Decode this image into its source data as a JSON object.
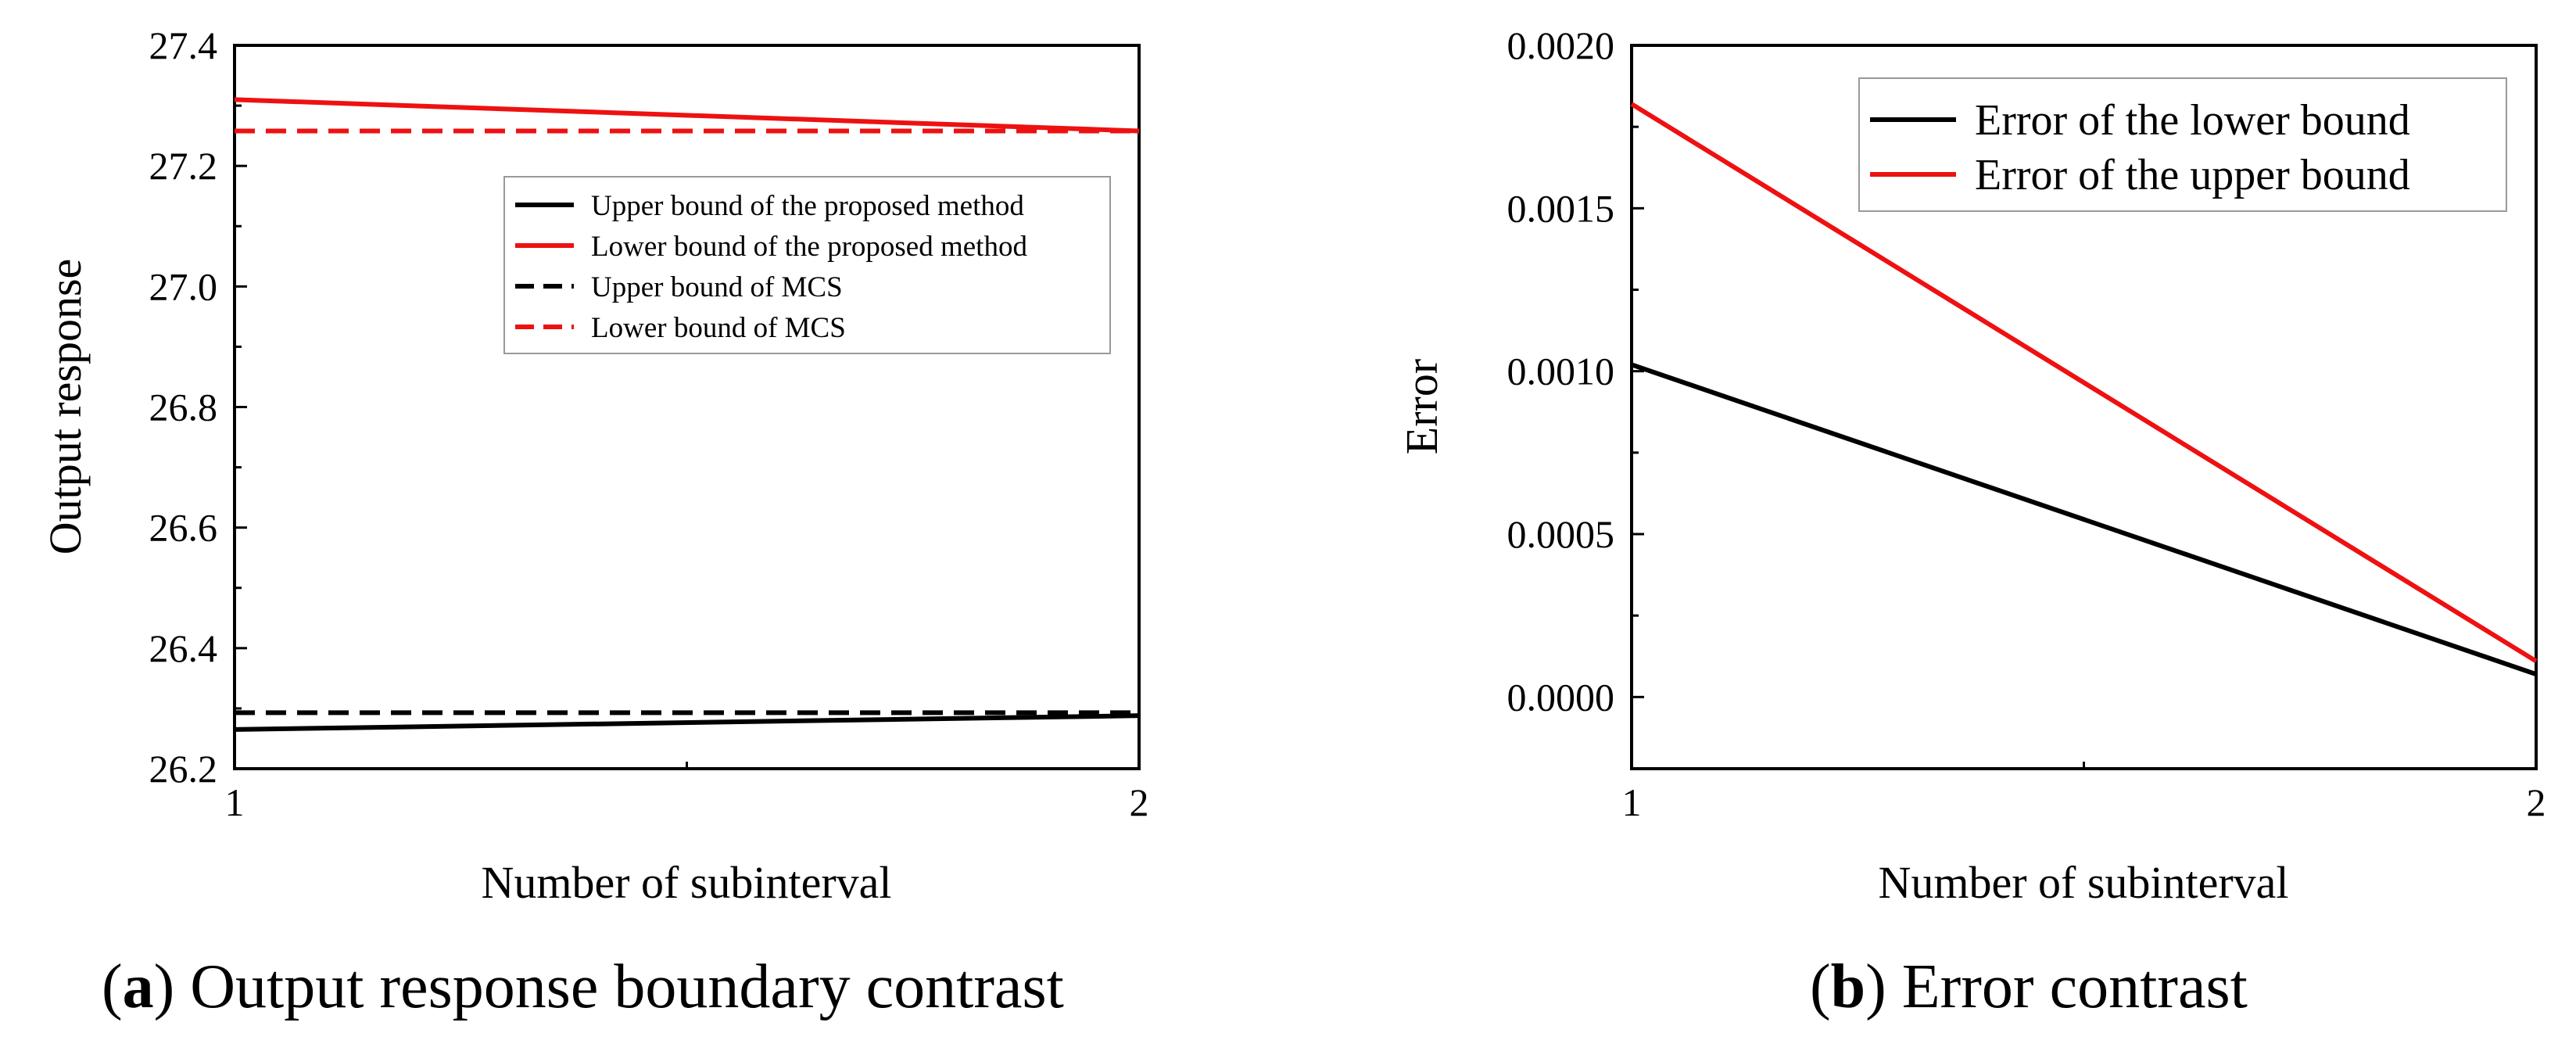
{
  "chart_data": [
    {
      "type": "line",
      "panel": "a",
      "caption_letter": "a",
      "caption_text": "Output response boundary contrast",
      "xlabel": "Number of subinterval",
      "ylabel": "Output response",
      "xlim": [
        1,
        2
      ],
      "ylim": [
        26.2,
        27.4
      ],
      "x_ticks": [
        "1",
        "2"
      ],
      "y_ticks": [
        "26.2",
        "26.4",
        "26.6",
        "26.8",
        "27.0",
        "27.2",
        "27.4"
      ],
      "x": [
        1,
        2
      ],
      "legend_position": "upper-right",
      "series": [
        {
          "name": "Upper bound of the proposed method",
          "values": [
            26.265,
            26.288
          ],
          "color": "#000000",
          "dash": "solid"
        },
        {
          "name": "Lower bound of the proposed method",
          "values": [
            27.31,
            27.258
          ],
          "color": "#ee1111",
          "dash": "solid"
        },
        {
          "name": "Upper bound of MCS",
          "values": [
            26.293,
            26.293
          ],
          "color": "#000000",
          "dash": "dashed"
        },
        {
          "name": "Lower bound of MCS",
          "values": [
            27.258,
            27.258
          ],
          "color": "#ee1111",
          "dash": "dashed"
        }
      ]
    },
    {
      "type": "line",
      "panel": "b",
      "caption_letter": "b",
      "caption_text": "Error contrast",
      "xlabel": "Number of subinterval",
      "ylabel": "Error",
      "xlim": [
        1,
        2
      ],
      "ylim": [
        -0.00022,
        0.002
      ],
      "x_ticks": [
        "1",
        "2"
      ],
      "y_ticks": [
        "0.0000",
        "0.0005",
        "0.0010",
        "0.0015",
        "0.0020"
      ],
      "y_tick_values": [
        0,
        0.0005,
        0.001,
        0.0015,
        0.002
      ],
      "x": [
        1,
        2
      ],
      "legend_position": "upper-right",
      "series": [
        {
          "name": "Error of the lower bound",
          "values": [
            0.00102,
            7e-05
          ],
          "color": "#000000",
          "dash": "solid"
        },
        {
          "name": "Error of the upper bound",
          "values": [
            0.00182,
            0.00011
          ],
          "color": "#ee1111",
          "dash": "solid"
        }
      ]
    }
  ]
}
